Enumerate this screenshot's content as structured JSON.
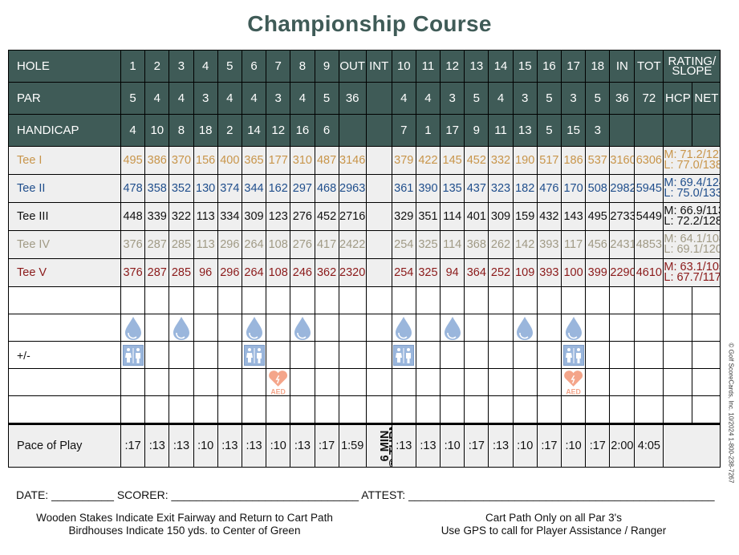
{
  "title": "Championship Course",
  "colors": {
    "header_bg": "#3f5b57",
    "tee_row_bg": "#efefef",
    "tee_i": "#c8954a",
    "tee_ii": "#1f4e8c",
    "tee_iii": "#111111",
    "tee_iv": "#a09a85",
    "tee_v": "#8b1a1a",
    "icon_water": "#9ab6dc",
    "icon_restroom": "#9ab6dc",
    "icon_aed": "#f4a58a"
  },
  "header": {
    "hole_label": "HOLE",
    "holes": [
      "1",
      "2",
      "3",
      "4",
      "5",
      "6",
      "7",
      "8",
      "9",
      "OUT",
      "INT",
      "10",
      "11",
      "12",
      "13",
      "14",
      "15",
      "16",
      "17",
      "18",
      "IN",
      "TOT"
    ],
    "rating_slope_label": "RATING/ SLOPE",
    "rating_line1": "RATING/",
    "rating_line2": "SLOPE",
    "par_label": "PAR",
    "par": [
      "5",
      "4",
      "4",
      "3",
      "4",
      "4",
      "3",
      "4",
      "5",
      "36",
      "",
      "4",
      "4",
      "3",
      "5",
      "4",
      "3",
      "5",
      "3",
      "5",
      "36",
      "72"
    ],
    "hcp_label": "HCP",
    "net_label": "NET",
    "handicap_label": "HANDICAP",
    "handicap": [
      "4",
      "10",
      "8",
      "18",
      "2",
      "14",
      "12",
      "16",
      "6",
      "",
      "",
      "7",
      "1",
      "17",
      "9",
      "11",
      "13",
      "5",
      "15",
      "3",
      "",
      ""
    ]
  },
  "tees": [
    {
      "name": "Tee I",
      "yards": [
        "495",
        "386",
        "370",
        "156",
        "400",
        "365",
        "177",
        "310",
        "487",
        "3146",
        "",
        "379",
        "422",
        "145",
        "452",
        "332",
        "190",
        "517",
        "186",
        "537",
        "3160",
        "6306"
      ],
      "men": "M: 71.2/127",
      "ladies": "L: 77.0/138"
    },
    {
      "name": "Tee II",
      "yards": [
        "478",
        "358",
        "352",
        "130",
        "374",
        "344",
        "162",
        "297",
        "468",
        "2963",
        "",
        "361",
        "390",
        "135",
        "437",
        "323",
        "182",
        "476",
        "170",
        "508",
        "2982",
        "5945"
      ],
      "men": "M: 69.4/124",
      "ladies": "L: 75.0/133"
    },
    {
      "name": "Tee III",
      "yards": [
        "448",
        "339",
        "322",
        "113",
        "334",
        "309",
        "123",
        "276",
        "452",
        "2716",
        "",
        "329",
        "351",
        "114",
        "401",
        "309",
        "159",
        "432",
        "143",
        "495",
        "2733",
        "5449"
      ],
      "men": "M: 66.9/113",
      "ladies": "L: 72.2/128"
    },
    {
      "name": "Tee IV",
      "yards": [
        "376",
        "287",
        "285",
        "113",
        "296",
        "264",
        "108",
        "276",
        "417",
        "2422",
        "",
        "254",
        "325",
        "114",
        "368",
        "262",
        "142",
        "393",
        "117",
        "456",
        "2431",
        "4853"
      ],
      "men": "M: 64.1/108",
      "ladies": "L: 69.1/120"
    },
    {
      "name": "Tee V",
      "yards": [
        "376",
        "287",
        "285",
        "96",
        "296",
        "264",
        "108",
        "246",
        "362",
        "2320",
        "",
        "254",
        "325",
        "94",
        "364",
        "252",
        "109",
        "393",
        "100",
        "399",
        "2290",
        "4610"
      ],
      "men": "M: 63.1/105",
      "ladies": "L: 67.7/117"
    }
  ],
  "blank_rows": {
    "row1_label": "",
    "row2_label": "",
    "plus_minus_label": "+/-",
    "row4_label": "",
    "row5_label": ""
  },
  "amenities": {
    "water_holes": [
      "1",
      "3",
      "6",
      "8",
      "10",
      "12",
      "15",
      "17"
    ],
    "restroom_holes": [
      "1",
      "6",
      "10",
      "17"
    ],
    "aed_holes": [
      "7",
      "17"
    ],
    "aed_text": "AED"
  },
  "pace": {
    "label": "Pace of Play",
    "times": [
      ":17",
      ":13",
      ":13",
      ":10",
      ":13",
      ":13",
      ":10",
      ":13",
      ":17",
      "1:59",
      "6 MIN @ TURN",
      ":13",
      ":13",
      ":10",
      ":17",
      ":13",
      ":10",
      ":17",
      ":10",
      ":17",
      "2:00",
      "4:05"
    ],
    "turn_line1": "6 MIN",
    "turn_line2": "@ TURN"
  },
  "footer": {
    "signature_line": "DATE: __________ SCORER: ______________________________ ATTEST: _________________________________________________",
    "left_note_1": "Wooden Stakes Indicate Exit Fairway and Return to Cart Path",
    "left_note_2": "Birdhouses Indicate 150 yds. to Center of Green",
    "right_note_1": "Cart Path Only on all Par 3's",
    "right_note_2": "Use GPS to call for Player Assistance / Ranger"
  },
  "side_note": "© Golf ScoreCards, Inc. 10/2024 1-800-238-7267"
}
